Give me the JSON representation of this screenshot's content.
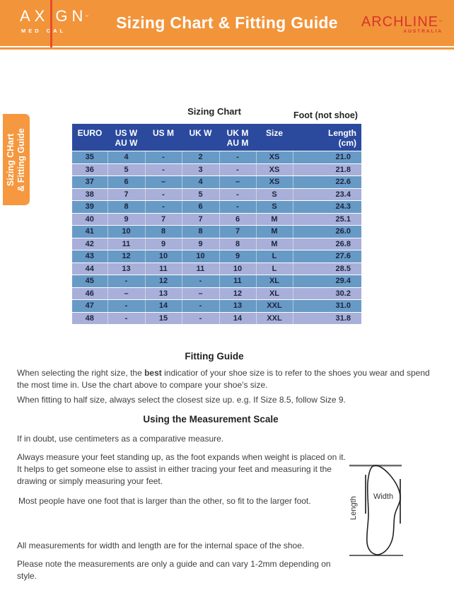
{
  "header": {
    "title": "Sizing Chart & Fitting Guide",
    "axign": {
      "pre": "AX",
      "post": "GN",
      "tm": "™",
      "sub_pre": "MED",
      "sub_post": "CAL"
    },
    "archline": {
      "name": "ARCHLINE",
      "tm": "™",
      "sub": "AUSTRALIA"
    }
  },
  "side_tab": {
    "line1": "Sizing CHart",
    "line2": "& Fitting Guide"
  },
  "sizing_chart": {
    "heading": "Sizing Chart",
    "foot_note": "Foot (not shoe)",
    "columns": [
      [
        "EURO"
      ],
      [
        "US W",
        "AU W"
      ],
      [
        "US M"
      ],
      [
        "UK W"
      ],
      [
        "UK M",
        "AU M"
      ],
      [
        "Size"
      ],
      [
        "Length",
        "(cm)"
      ]
    ],
    "rows": [
      [
        "35",
        "4",
        "-",
        "2",
        "-",
        "XS",
        "21.0"
      ],
      [
        "36",
        "5",
        "-",
        "3",
        "-",
        "XS",
        "21.8"
      ],
      [
        "37",
        "6",
        "–",
        "4",
        "–",
        "XS",
        "22.6"
      ],
      [
        "38",
        "7",
        "-",
        "5",
        "-",
        "S",
        "23.4"
      ],
      [
        "39",
        "8",
        "-",
        "6",
        "-",
        "S",
        "24.3"
      ],
      [
        "40",
        "9",
        "7",
        "7",
        "6",
        "M",
        "25.1"
      ],
      [
        "41",
        "10",
        "8",
        "8",
        "7",
        "M",
        "26.0"
      ],
      [
        "42",
        "11",
        "9",
        "9",
        "8",
        "M",
        "26.8"
      ],
      [
        "43",
        "12",
        "10",
        "10",
        "9",
        "L",
        "27.6"
      ],
      [
        "44",
        "13",
        "11",
        "11",
        "10",
        "L",
        "28.5"
      ],
      [
        "45",
        "-",
        "12",
        "-",
        "11",
        "XL",
        "29.4"
      ],
      [
        "46",
        "–",
        "13",
        "–",
        "12",
        "XL",
        "30.2"
      ],
      [
        "47",
        "-",
        "14",
        "-",
        "13",
        "XXL",
        "31.0"
      ],
      [
        "48",
        "-",
        "15",
        "-",
        "14",
        "XXL",
        "31.8"
      ]
    ]
  },
  "fitting_guide": {
    "heading": "Fitting Guide",
    "p1_pre": "When selecting the right size, the ",
    "p1_bold": "best",
    "p1_post": " indicatior of your shoe size is to refer to the shoes you wear and spend the most time in. Use the chart above to compare your shoe's size.",
    "p2": "When fitting to half size, always select the closest size up. e.g. If Size 8.5, follow Size 9."
  },
  "measurement": {
    "heading": "Using the Measurement Scale",
    "p1": "If in doubt, use centimeters as a comparative measure.",
    "p2": "Always measure your feet standing up, as the foot expands when weight is placed on it. It helps to get someone else to assist in either tracing your feet and measuring it the drawing or simply measuring your feet.",
    "p3": "Most people have one foot that is larger than the other, so fit to the larger foot.",
    "p4": "All measurements for width and length are for the internal space of the shoe.",
    "p5": "Please note the measurements are only a guide and can vary 1-2mm depending on style."
  },
  "foot_diagram": {
    "width_label": "Width",
    "length_label": "Length"
  },
  "colors": {
    "banner_orange": "#F2943A",
    "accent_red": "#E64C2E",
    "archline_red": "#D6362A",
    "table_header_blue": "#2B4A9E",
    "row_dark_blue": "#689AC6",
    "row_light_lavender": "#A8AFD9"
  }
}
